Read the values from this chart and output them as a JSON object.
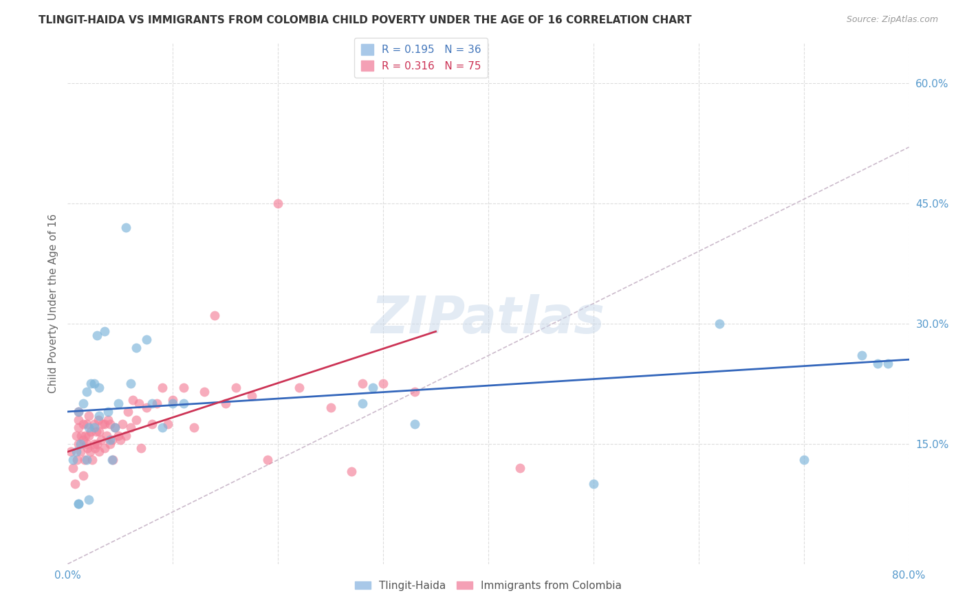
{
  "title": "TLINGIT-HAIDA VS IMMIGRANTS FROM COLOMBIA CHILD POVERTY UNDER THE AGE OF 16 CORRELATION CHART",
  "source": "Source: ZipAtlas.com",
  "ylabel": "Child Poverty Under the Age of 16",
  "xlim": [
    0.0,
    0.8
  ],
  "ylim": [
    0.0,
    0.65
  ],
  "xticks": [
    0.0,
    0.1,
    0.2,
    0.3,
    0.4,
    0.5,
    0.6,
    0.7,
    0.8
  ],
  "xticklabels": [
    "0.0%",
    "",
    "",
    "",
    "",
    "",
    "",
    "",
    "80.0%"
  ],
  "yticks": [
    0.15,
    0.3,
    0.45,
    0.6
  ],
  "yticklabels": [
    "15.0%",
    "30.0%",
    "45.0%",
    "60.0%"
  ],
  "watermark": "ZIPatlas",
  "series1_color": "#7ab3d9",
  "series2_color": "#f48099",
  "trendline1_color": "#3366bb",
  "trendline2_color": "#cc3355",
  "trendline_dash_color": "#ccbbcc",
  "background_color": "#ffffff",
  "grid_color": "#dddddd",
  "title_color": "#333333",
  "tick_label_color": "#5599cc",
  "series1_x": [
    0.005,
    0.008,
    0.01,
    0.01,
    0.01,
    0.012,
    0.015,
    0.018,
    0.018,
    0.02,
    0.02,
    0.022,
    0.025,
    0.025,
    0.028,
    0.03,
    0.03,
    0.035,
    0.038,
    0.04,
    0.042,
    0.045,
    0.048,
    0.055,
    0.06,
    0.065,
    0.075,
    0.08,
    0.09,
    0.1,
    0.11,
    0.28,
    0.29,
    0.33,
    0.5,
    0.62,
    0.7,
    0.755,
    0.77,
    0.78
  ],
  "series1_y": [
    0.13,
    0.14,
    0.075,
    0.075,
    0.19,
    0.15,
    0.2,
    0.13,
    0.215,
    0.08,
    0.17,
    0.225,
    0.17,
    0.225,
    0.285,
    0.185,
    0.22,
    0.29,
    0.19,
    0.155,
    0.13,
    0.17,
    0.2,
    0.42,
    0.225,
    0.27,
    0.28,
    0.2,
    0.17,
    0.2,
    0.2,
    0.2,
    0.22,
    0.175,
    0.1,
    0.3,
    0.13,
    0.26,
    0.25,
    0.25
  ],
  "series2_x": [
    0.003,
    0.005,
    0.007,
    0.008,
    0.009,
    0.01,
    0.01,
    0.01,
    0.01,
    0.012,
    0.013,
    0.015,
    0.015,
    0.015,
    0.016,
    0.017,
    0.018,
    0.018,
    0.019,
    0.02,
    0.02,
    0.021,
    0.022,
    0.023,
    0.025,
    0.025,
    0.026,
    0.027,
    0.028,
    0.029,
    0.03,
    0.03,
    0.032,
    0.033,
    0.035,
    0.035,
    0.037,
    0.038,
    0.04,
    0.04,
    0.042,
    0.043,
    0.045,
    0.048,
    0.05,
    0.052,
    0.055,
    0.057,
    0.06,
    0.062,
    0.065,
    0.068,
    0.07,
    0.075,
    0.08,
    0.085,
    0.09,
    0.095,
    0.1,
    0.11,
    0.12,
    0.13,
    0.14,
    0.15,
    0.16,
    0.175,
    0.19,
    0.2,
    0.22,
    0.25,
    0.27,
    0.28,
    0.3,
    0.33,
    0.43
  ],
  "series2_y": [
    0.14,
    0.12,
    0.1,
    0.16,
    0.13,
    0.15,
    0.17,
    0.18,
    0.19,
    0.14,
    0.16,
    0.11,
    0.155,
    0.175,
    0.13,
    0.16,
    0.15,
    0.175,
    0.145,
    0.16,
    0.185,
    0.14,
    0.165,
    0.13,
    0.15,
    0.175,
    0.145,
    0.165,
    0.15,
    0.18,
    0.14,
    0.165,
    0.155,
    0.175,
    0.145,
    0.175,
    0.16,
    0.18,
    0.15,
    0.175,
    0.155,
    0.13,
    0.17,
    0.16,
    0.155,
    0.175,
    0.16,
    0.19,
    0.17,
    0.205,
    0.18,
    0.2,
    0.145,
    0.195,
    0.175,
    0.2,
    0.22,
    0.175,
    0.205,
    0.22,
    0.17,
    0.215,
    0.31,
    0.2,
    0.22,
    0.21,
    0.13,
    0.45,
    0.22,
    0.195,
    0.115,
    0.225,
    0.225,
    0.215,
    0.12
  ],
  "trendline1_x0": 0.0,
  "trendline1_y0": 0.19,
  "trendline1_x1": 0.8,
  "trendline1_y1": 0.255,
  "trendline2_x0": 0.0,
  "trendline2_y0": 0.14,
  "trendline2_x1": 0.35,
  "trendline2_y1": 0.29,
  "dashline_x0": 0.0,
  "dashline_y0": 0.0,
  "dashline_x1": 0.8,
  "dashline_y1": 0.52
}
